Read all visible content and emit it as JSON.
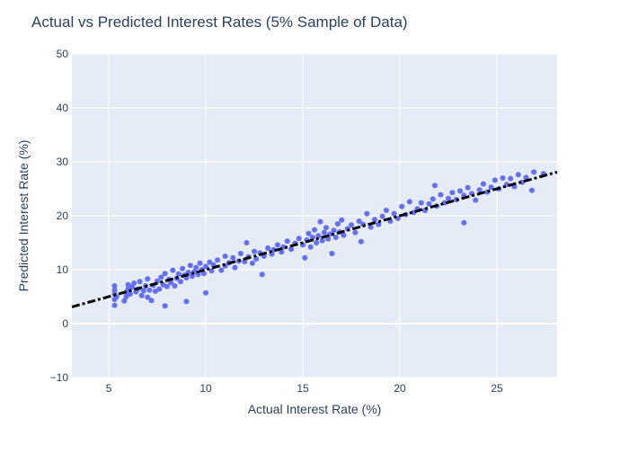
{
  "chart_data": {
    "type": "scatter",
    "title": "Actual vs Predicted Interest Rates (5% Sample of Data)",
    "xlabel": "Actual Interest Rate (%)",
    "ylabel": "Predicted Interest Rate (%)",
    "xlim": [
      3.1,
      28.1
    ],
    "ylim": [
      -10,
      50
    ],
    "x_ticks": [
      5,
      10,
      15,
      20,
      25
    ],
    "y_ticks": [
      -10,
      0,
      10,
      20,
      30,
      40,
      50
    ],
    "grid": true,
    "legend": "none",
    "colors": {
      "plot_bg": "#e5ecf6",
      "grid": "#ffffff",
      "points": "#636efa",
      "reference_line": "#000000",
      "text": "#2a3f5f"
    },
    "reference_line": {
      "style": "dash-dot",
      "points": [
        [
          3.1,
          3.1
        ],
        [
          28.1,
          28.1
        ]
      ]
    },
    "series": [
      {
        "type": "scatter",
        "points": [
          [
            5.3,
            3.4
          ],
          [
            5.3,
            4.5
          ],
          [
            5.3,
            5.5
          ],
          [
            5.3,
            6.2
          ],
          [
            5.3,
            7.0
          ],
          [
            5.4,
            5.0
          ],
          [
            5.8,
            4.2
          ],
          [
            5.9,
            5.0
          ],
          [
            5.9,
            5.8
          ],
          [
            6.0,
            6.5
          ],
          [
            6.0,
            7.2
          ],
          [
            6.1,
            5.5
          ],
          [
            6.2,
            6.8
          ],
          [
            6.3,
            7.5
          ],
          [
            6.4,
            5.9
          ],
          [
            6.5,
            6.4
          ],
          [
            6.6,
            7.8
          ],
          [
            6.7,
            5.2
          ],
          [
            6.8,
            6.1
          ],
          [
            6.9,
            7.0
          ],
          [
            7.0,
            4.9
          ],
          [
            7.0,
            8.3
          ],
          [
            7.1,
            6.2
          ],
          [
            7.2,
            4.3
          ],
          [
            7.3,
            7.1
          ],
          [
            7.4,
            6.0
          ],
          [
            7.5,
            7.9
          ],
          [
            7.6,
            6.4
          ],
          [
            7.7,
            8.6
          ],
          [
            7.8,
            7.2
          ],
          [
            7.9,
            3.3
          ],
          [
            7.9,
            9.3
          ],
          [
            8.0,
            6.9
          ],
          [
            8.1,
            8.2
          ],
          [
            8.2,
            7.6
          ],
          [
            8.3,
            9.9
          ],
          [
            8.4,
            7.0
          ],
          [
            8.5,
            8.4
          ],
          [
            8.6,
            9.2
          ],
          [
            8.7,
            7.8
          ],
          [
            8.8,
            10.2
          ],
          [
            8.9,
            9.0
          ],
          [
            9.0,
            4.1
          ],
          [
            9.0,
            8.5
          ],
          [
            9.1,
            9.5
          ],
          [
            9.2,
            10.8
          ],
          [
            9.3,
            8.8
          ],
          [
            9.4,
            9.6
          ],
          [
            9.5,
            10.4
          ],
          [
            9.6,
            9.1
          ],
          [
            9.7,
            11.2
          ],
          [
            9.8,
            10.0
          ],
          [
            9.9,
            9.3
          ],
          [
            10.0,
            5.7
          ],
          [
            10.0,
            10.6
          ],
          [
            10.2,
            11.4
          ],
          [
            10.3,
            9.8
          ],
          [
            10.4,
            10.9
          ],
          [
            10.6,
            11.8
          ],
          [
            10.8,
            9.9
          ],
          [
            11.0,
            12.5
          ],
          [
            11.0,
            10.7
          ],
          [
            11.2,
            11.3
          ],
          [
            11.4,
            12.2
          ],
          [
            11.5,
            10.4
          ],
          [
            11.7,
            11.6
          ],
          [
            11.8,
            13.0
          ],
          [
            12.0,
            11.5
          ],
          [
            12.1,
            15.0
          ],
          [
            12.2,
            12.4
          ],
          [
            12.4,
            11.2
          ],
          [
            12.5,
            13.4
          ],
          [
            12.6,
            12.0
          ],
          [
            12.8,
            13.1
          ],
          [
            12.9,
            9.1
          ],
          [
            13.0,
            12.5
          ],
          [
            13.2,
            14.0
          ],
          [
            13.4,
            12.9
          ],
          [
            13.5,
            13.7
          ],
          [
            13.7,
            14.6
          ],
          [
            13.9,
            13.3
          ],
          [
            14.0,
            14.2
          ],
          [
            14.2,
            15.3
          ],
          [
            14.4,
            13.8
          ],
          [
            14.6,
            14.9
          ],
          [
            14.8,
            15.8
          ],
          [
            15.0,
            14.6
          ],
          [
            15.1,
            12.2
          ],
          [
            15.2,
            15.5
          ],
          [
            15.3,
            16.7
          ],
          [
            15.4,
            14.2
          ],
          [
            15.5,
            16.0
          ],
          [
            15.6,
            17.4
          ],
          [
            15.7,
            15.0
          ],
          [
            15.8,
            16.3
          ],
          [
            15.9,
            18.9
          ],
          [
            16.0,
            15.4
          ],
          [
            16.1,
            16.9
          ],
          [
            16.2,
            17.8
          ],
          [
            16.3,
            15.7
          ],
          [
            16.4,
            16.6
          ],
          [
            16.5,
            13.0
          ],
          [
            16.6,
            17.3
          ],
          [
            16.7,
            16.0
          ],
          [
            16.8,
            18.5
          ],
          [
            16.9,
            17.0
          ],
          [
            17.0,
            19.2
          ],
          [
            17.1,
            16.4
          ],
          [
            17.3,
            17.6
          ],
          [
            17.5,
            18.3
          ],
          [
            17.7,
            16.9
          ],
          [
            17.9,
            19.0
          ],
          [
            18.0,
            15.2
          ],
          [
            18.1,
            18.4
          ],
          [
            18.3,
            20.4
          ],
          [
            18.5,
            17.9
          ],
          [
            18.7,
            19.3
          ],
          [
            18.9,
            18.4
          ],
          [
            19.1,
            19.9
          ],
          [
            19.3,
            21.0
          ],
          [
            19.5,
            19.0
          ],
          [
            19.7,
            20.4
          ],
          [
            19.9,
            19.5
          ],
          [
            20.1,
            21.7
          ],
          [
            20.3,
            20.2
          ],
          [
            20.5,
            22.6
          ],
          [
            20.7,
            20.6
          ],
          [
            20.9,
            21.3
          ],
          [
            21.1,
            22.4
          ],
          [
            21.3,
            21.0
          ],
          [
            21.5,
            22.2
          ],
          [
            21.7,
            23.1
          ],
          [
            21.8,
            25.6
          ],
          [
            21.9,
            21.8
          ],
          [
            22.1,
            23.9
          ],
          [
            22.3,
            22.4
          ],
          [
            22.5,
            23.2
          ],
          [
            22.7,
            24.3
          ],
          [
            22.9,
            23.0
          ],
          [
            23.1,
            24.6
          ],
          [
            23.3,
            18.7
          ],
          [
            23.3,
            23.8
          ],
          [
            23.5,
            25.2
          ],
          [
            23.7,
            24.1
          ],
          [
            23.9,
            22.9
          ],
          [
            24.1,
            24.8
          ],
          [
            24.3,
            25.9
          ],
          [
            24.5,
            24.4
          ],
          [
            24.7,
            25.3
          ],
          [
            24.9,
            26.6
          ],
          [
            25.1,
            25.0
          ],
          [
            25.3,
            27.0
          ],
          [
            25.5,
            25.8
          ],
          [
            25.7,
            26.9
          ],
          [
            25.9,
            25.4
          ],
          [
            26.1,
            27.6
          ],
          [
            26.3,
            26.2
          ],
          [
            26.5,
            27.1
          ],
          [
            26.8,
            24.7
          ],
          [
            26.9,
            28.1
          ],
          [
            27.4,
            27.8
          ]
        ]
      }
    ]
  }
}
